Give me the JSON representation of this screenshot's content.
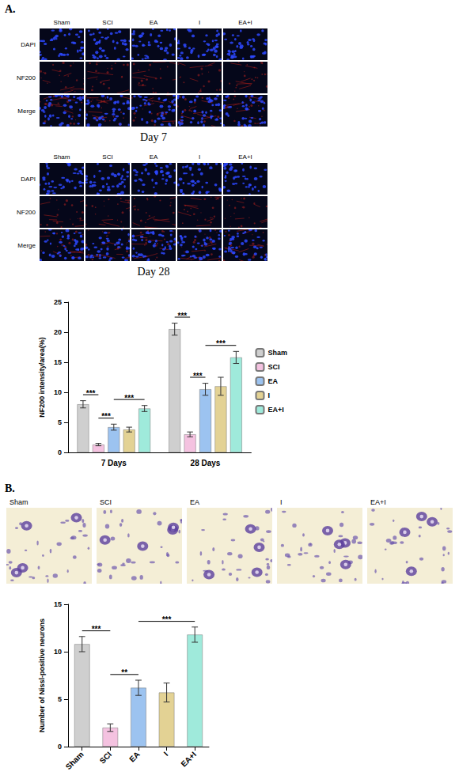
{
  "figure": {
    "panel_A": {
      "letter": "A.",
      "image_grids": [
        {
          "caption": "Day 7",
          "columns": [
            "Sham",
            "SCI",
            "EA",
            "I",
            "EA+I"
          ],
          "rows": [
            "DAPI",
            "NF200",
            "Merge"
          ]
        },
        {
          "caption": "Day 28",
          "columns": [
            "Sham",
            "SCI",
            "EA",
            "I",
            "EA+I"
          ],
          "rows": [
            "DAPI",
            "NF200",
            "Merge"
          ]
        }
      ]
    },
    "panel_B": {
      "letter": "B.",
      "image_columns": [
        "Sham",
        "SCI",
        "EA",
        "I",
        "EA+I"
      ]
    }
  },
  "chart_data": [
    {
      "type": "bar",
      "categories": [
        "7 Days",
        "28 Days"
      ],
      "y_label": "NF200 intensity/area(%)",
      "ylim": [
        0,
        25
      ],
      "yticks": [
        0,
        5,
        10,
        15,
        20,
        25
      ],
      "grid": false,
      "legend": "right",
      "series": [
        {
          "name": "Sham",
          "color": "#cfcfcf",
          "values": [
            8.0,
            20.5
          ],
          "errors": [
            0.6,
            1.0
          ]
        },
        {
          "name": "SCI",
          "color": "#f4c2e0",
          "values": [
            1.3,
            3.0
          ],
          "errors": [
            0.2,
            0.4
          ]
        },
        {
          "name": "EA",
          "color": "#9cc3f0",
          "values": [
            4.2,
            10.5
          ],
          "errors": [
            0.5,
            1.0
          ]
        },
        {
          "name": "I",
          "color": "#e3d294",
          "values": [
            3.8,
            11.0
          ],
          "errors": [
            0.4,
            1.5
          ]
        },
        {
          "name": "EA+I",
          "color": "#9feadb",
          "values": [
            7.3,
            15.8
          ],
          "errors": [
            0.5,
            1.0
          ]
        }
      ],
      "comparisons": [
        {
          "category": "7 Days",
          "from": "Sham",
          "to": "SCI",
          "label": "***"
        },
        {
          "category": "7 Days",
          "from": "EA",
          "to": "EA+I",
          "label": "***"
        },
        {
          "category": "7 Days",
          "from": "SCI",
          "to": "EA",
          "label": "***"
        },
        {
          "category": "28 Days",
          "from": "SCI",
          "to": "EA",
          "label": "***"
        },
        {
          "category": "28 Days",
          "from": "Sham",
          "to": "SCI",
          "label": "***"
        },
        {
          "category": "28 Days",
          "from": "EA",
          "to": "EA+I",
          "label": "***"
        }
      ]
    },
    {
      "type": "bar",
      "categories": [
        "Sham",
        "SCI",
        "EA",
        "I",
        "EA+I"
      ],
      "colors": [
        "#cfcfcf",
        "#f4c2e0",
        "#9cc3f0",
        "#e3d294",
        "#9feadb"
      ],
      "values": [
        10.8,
        2.0,
        6.2,
        5.7,
        11.8
      ],
      "errors": [
        0.8,
        0.4,
        0.8,
        1.0,
        0.8
      ],
      "y_label": "Number of Nissl-positive neurons",
      "ylim": [
        0,
        15
      ],
      "yticks": [
        0,
        5,
        10,
        15
      ],
      "grid": false,
      "comparisons": [
        {
          "from": "Sham",
          "to": "SCI",
          "label": "***"
        },
        {
          "from": "SCI",
          "to": "EA",
          "label": "**"
        },
        {
          "from": "EA",
          "to": "EA+I",
          "label": "***"
        }
      ]
    }
  ]
}
